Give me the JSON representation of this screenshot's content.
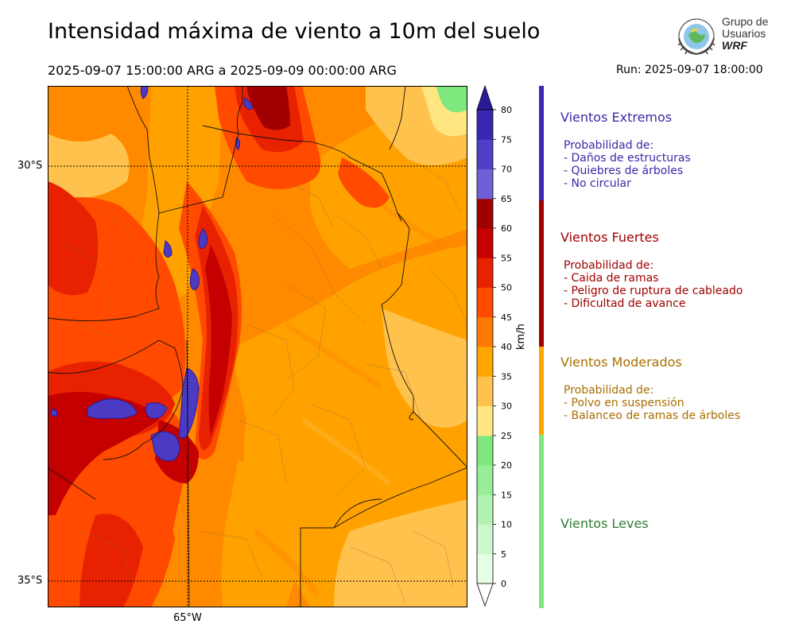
{
  "header": {
    "title": "Intensidad máxima de viento a 10m del suelo",
    "period": "2025-09-07 15:00:00 ARG  a  2025-09-09 00:00:00 ARG",
    "run": "Run: 2025-09-07 18:00:00"
  },
  "logo": {
    "text_lines": [
      "Grupo de",
      "Usuarios",
      "WRF"
    ]
  },
  "map": {
    "lat_labels": [
      "30°S",
      "35°S"
    ],
    "lon_labels": [
      "65°W"
    ]
  },
  "colorbar": {
    "unit": "km/h",
    "ticks": [
      "0",
      "5",
      "10",
      "15",
      "20",
      "25",
      "30",
      "35",
      "40",
      "45",
      "50",
      "55",
      "60",
      "65",
      "70",
      "75",
      "80"
    ],
    "colors": [
      "#e6fde6",
      "#ccf8cc",
      "#b2f3b2",
      "#98ee98",
      "#7ee87e",
      "#ffe680",
      "#ffc24d",
      "#ffa500",
      "#ff7a00",
      "#ff4a00",
      "#e82200",
      "#c40000",
      "#a00000",
      "#7060d8",
      "#5040c8",
      "#3a28b4",
      "#2a1a98"
    ]
  },
  "categories": [
    {
      "name": "Vientos Extremos",
      "color": "#3a29a8",
      "prob_label": "Probabilidad de:",
      "items": [
        "- Daños de estructuras",
        "- Quiebres de árboles",
        "- No circular"
      ]
    },
    {
      "name": "Vientos Fuertes",
      "color": "#a00000",
      "prob_label": "Probabilidad de:",
      "items": [
        "- Caida de ramas",
        "- Peligro de ruptura de cableado",
        "- Dificultad de avance"
      ]
    },
    {
      "name": "Vientos Moderados",
      "color": "#a86e00",
      "prob_label": "Probabilidad de:",
      "items": [
        "- Polvo en suspensión",
        "- Balanceo de ramas de árboles"
      ]
    },
    {
      "name": "Vientos Leves",
      "color": "#2e7d32"
    }
  ]
}
